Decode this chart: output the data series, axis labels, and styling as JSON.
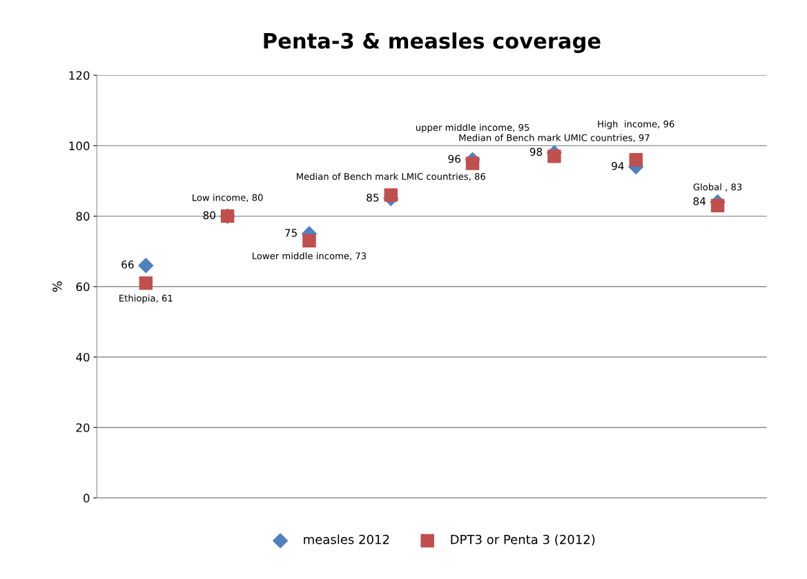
{
  "chart_data": {
    "type": "scatter",
    "title": "Penta-3 & measles coverage",
    "ylabel": "%",
    "categories": [
      null,
      null,
      null,
      null,
      null,
      null,
      null,
      null
    ],
    "ylim": [
      0,
      120
    ],
    "yticks": [
      0,
      20,
      40,
      60,
      80,
      100,
      120
    ],
    "grid": "y",
    "legend": "bottom",
    "series": [
      {
        "name": "measles 2012",
        "color": "#4f81bd",
        "marker": "diamond",
        "values": [
          66,
          80,
          75,
          85,
          96,
          98,
          94,
          84
        ],
        "value_labels": [
          "66",
          "80",
          "75",
          "85",
          "96",
          "98",
          "94",
          "84"
        ]
      },
      {
        "name": "DPT3 or Penta 3 (2012)",
        "color": "#c0504d",
        "marker": "square",
        "values": [
          61,
          80,
          73,
          86,
          95,
          97,
          96,
          83
        ],
        "value_labels": [
          "Ethiopia, 61",
          "Low income, 80",
          "Lower middle income, 73",
          "Median of Bench mark LMIC countries, 86",
          "upper middle income, 95",
          "Median of Bench mark UMIC countries, 97",
          "High  income, 96",
          "Global , 83"
        ]
      }
    ]
  }
}
